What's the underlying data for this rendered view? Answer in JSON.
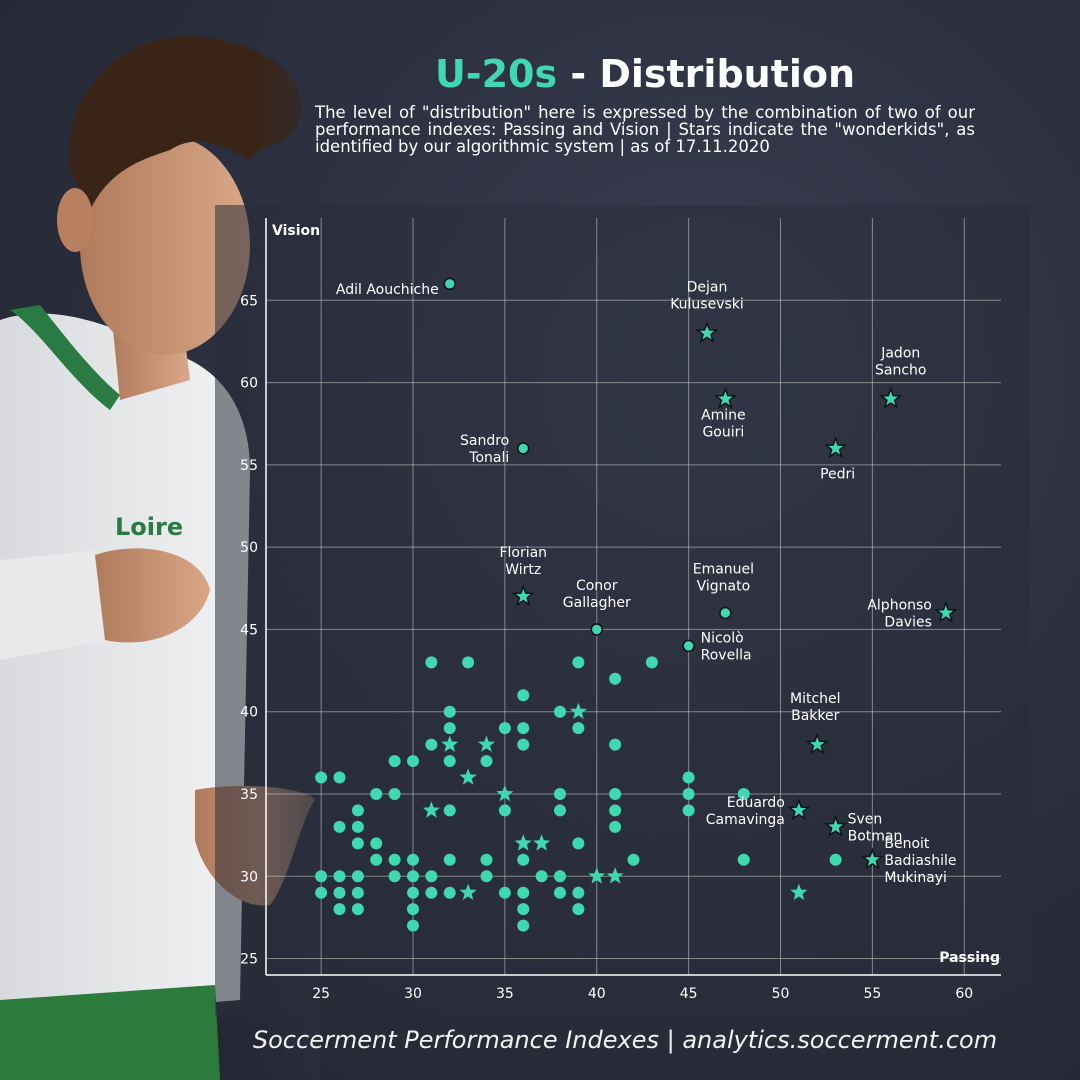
{
  "header": {
    "title_accent": "U-20s",
    "title_rest": " - Distribution",
    "subtitle": "The level of \"distribution\" here is expressed by the combination of two of our performance indexes: Passing and Vision | Stars indicate the \"wonderkids\", as identified by our algorithmic system | as of 17.11.2020"
  },
  "footer": {
    "text": "Soccerment Performance Indexes | analytics.soccerment.com"
  },
  "colors": {
    "accent": "#3fd8b0",
    "grid": "#cfcfcf",
    "text": "#ffffff",
    "panel": "#2a2d3a"
  },
  "chart_data": {
    "type": "scatter",
    "xlabel": "Passing",
    "ylabel": "Vision",
    "xlim": [
      22,
      62
    ],
    "ylim": [
      24,
      70
    ],
    "xticks": [
      25,
      30,
      35,
      40,
      45,
      50,
      55,
      60
    ],
    "yticks": [
      25,
      30,
      35,
      40,
      45,
      50,
      55,
      60,
      65
    ],
    "grid": true,
    "marker_legend": {
      "circle": "player",
      "star": "wonderkid"
    },
    "labeled_points": [
      {
        "name": "Adil Aouchiche",
        "x": 32,
        "y": 66,
        "marker": "circle"
      },
      {
        "name": "Dejan Kulusevski",
        "x": 46,
        "y": 63,
        "marker": "star"
      },
      {
        "name": "Jadon Sancho",
        "x": 56,
        "y": 59,
        "marker": "star"
      },
      {
        "name": "Amine Gouiri",
        "x": 47,
        "y": 59,
        "marker": "star"
      },
      {
        "name": "Sandro Tonali",
        "x": 36,
        "y": 56,
        "marker": "circle"
      },
      {
        "name": "Pedri",
        "x": 53,
        "y": 56,
        "marker": "star"
      },
      {
        "name": "Florian Wirtz",
        "x": 36,
        "y": 47,
        "marker": "star"
      },
      {
        "name": "Conor Gallagher",
        "x": 40,
        "y": 45,
        "marker": "circle"
      },
      {
        "name": "Emanuel Vignato",
        "x": 47,
        "y": 46,
        "marker": "circle"
      },
      {
        "name": "Alphonso Davies",
        "x": 59,
        "y": 46,
        "marker": "star"
      },
      {
        "name": "Nicolò Rovella",
        "x": 45,
        "y": 44,
        "marker": "circle"
      },
      {
        "name": "Mitchel Bakker",
        "x": 52,
        "y": 38,
        "marker": "star"
      },
      {
        "name": "Eduardo Camavinga",
        "x": 51,
        "y": 34,
        "marker": "star"
      },
      {
        "name": "Sven Botman",
        "x": 53,
        "y": 33,
        "marker": "star"
      },
      {
        "name": "Benoit Badiashile Mukinayi",
        "x": 55,
        "y": 31,
        "marker": "star"
      }
    ],
    "other_points": [
      {
        "x": 25,
        "y": 36,
        "marker": "circle"
      },
      {
        "x": 26,
        "y": 36,
        "marker": "circle"
      },
      {
        "x": 25,
        "y": 30,
        "marker": "circle"
      },
      {
        "x": 25,
        "y": 29,
        "marker": "circle"
      },
      {
        "x": 26,
        "y": 33,
        "marker": "circle"
      },
      {
        "x": 26,
        "y": 30,
        "marker": "circle"
      },
      {
        "x": 26,
        "y": 29,
        "marker": "circle"
      },
      {
        "x": 26,
        "y": 28,
        "marker": "circle"
      },
      {
        "x": 27,
        "y": 34,
        "marker": "circle"
      },
      {
        "x": 27,
        "y": 33,
        "marker": "circle"
      },
      {
        "x": 27,
        "y": 32,
        "marker": "circle"
      },
      {
        "x": 27,
        "y": 30,
        "marker": "circle"
      },
      {
        "x": 27,
        "y": 29,
        "marker": "circle"
      },
      {
        "x": 27,
        "y": 28,
        "marker": "circle"
      },
      {
        "x": 28,
        "y": 35,
        "marker": "circle"
      },
      {
        "x": 28,
        "y": 32,
        "marker": "circle"
      },
      {
        "x": 28,
        "y": 31,
        "marker": "circle"
      },
      {
        "x": 29,
        "y": 37,
        "marker": "circle"
      },
      {
        "x": 29,
        "y": 35,
        "marker": "circle"
      },
      {
        "x": 29,
        "y": 31,
        "marker": "circle"
      },
      {
        "x": 29,
        "y": 30,
        "marker": "circle"
      },
      {
        "x": 30,
        "y": 37,
        "marker": "circle"
      },
      {
        "x": 30,
        "y": 31,
        "marker": "circle"
      },
      {
        "x": 30,
        "y": 30,
        "marker": "circle"
      },
      {
        "x": 30,
        "y": 29,
        "marker": "circle"
      },
      {
        "x": 30,
        "y": 28,
        "marker": "circle"
      },
      {
        "x": 30,
        "y": 27,
        "marker": "circle"
      },
      {
        "x": 31,
        "y": 43,
        "marker": "circle"
      },
      {
        "x": 31,
        "y": 38,
        "marker": "circle"
      },
      {
        "x": 31,
        "y": 34,
        "marker": "star"
      },
      {
        "x": 31,
        "y": 30,
        "marker": "circle"
      },
      {
        "x": 31,
        "y": 29,
        "marker": "circle"
      },
      {
        "x": 32,
        "y": 40,
        "marker": "circle"
      },
      {
        "x": 32,
        "y": 39,
        "marker": "circle"
      },
      {
        "x": 32,
        "y": 38,
        "marker": "star"
      },
      {
        "x": 32,
        "y": 37,
        "marker": "circle"
      },
      {
        "x": 32,
        "y": 34,
        "marker": "circle"
      },
      {
        "x": 32,
        "y": 31,
        "marker": "circle"
      },
      {
        "x": 32,
        "y": 29,
        "marker": "circle"
      },
      {
        "x": 33,
        "y": 43,
        "marker": "circle"
      },
      {
        "x": 33,
        "y": 36,
        "marker": "star"
      },
      {
        "x": 33,
        "y": 29,
        "marker": "star"
      },
      {
        "x": 34,
        "y": 38,
        "marker": "star"
      },
      {
        "x": 34,
        "y": 37,
        "marker": "circle"
      },
      {
        "x": 34,
        "y": 31,
        "marker": "circle"
      },
      {
        "x": 34,
        "y": 30,
        "marker": "circle"
      },
      {
        "x": 35,
        "y": 39,
        "marker": "circle"
      },
      {
        "x": 35,
        "y": 35,
        "marker": "star"
      },
      {
        "x": 35,
        "y": 34,
        "marker": "circle"
      },
      {
        "x": 35,
        "y": 29,
        "marker": "circle"
      },
      {
        "x": 36,
        "y": 41,
        "marker": "circle"
      },
      {
        "x": 36,
        "y": 39,
        "marker": "circle"
      },
      {
        "x": 36,
        "y": 38,
        "marker": "circle"
      },
      {
        "x": 36,
        "y": 32,
        "marker": "star"
      },
      {
        "x": 36,
        "y": 31,
        "marker": "circle"
      },
      {
        "x": 36,
        "y": 29,
        "marker": "circle"
      },
      {
        "x": 36,
        "y": 28,
        "marker": "circle"
      },
      {
        "x": 36,
        "y": 27,
        "marker": "circle"
      },
      {
        "x": 37,
        "y": 32,
        "marker": "star"
      },
      {
        "x": 37,
        "y": 30,
        "marker": "circle"
      },
      {
        "x": 38,
        "y": 40,
        "marker": "circle"
      },
      {
        "x": 38,
        "y": 35,
        "marker": "circle"
      },
      {
        "x": 38,
        "y": 34,
        "marker": "circle"
      },
      {
        "x": 38,
        "y": 30,
        "marker": "circle"
      },
      {
        "x": 38,
        "y": 29,
        "marker": "circle"
      },
      {
        "x": 39,
        "y": 43,
        "marker": "circle"
      },
      {
        "x": 39,
        "y": 40,
        "marker": "star"
      },
      {
        "x": 39,
        "y": 39,
        "marker": "circle"
      },
      {
        "x": 39,
        "y": 32,
        "marker": "circle"
      },
      {
        "x": 39,
        "y": 29,
        "marker": "circle"
      },
      {
        "x": 39,
        "y": 28,
        "marker": "circle"
      },
      {
        "x": 40,
        "y": 30,
        "marker": "star"
      },
      {
        "x": 41,
        "y": 42,
        "marker": "circle"
      },
      {
        "x": 41,
        "y": 38,
        "marker": "circle"
      },
      {
        "x": 41,
        "y": 35,
        "marker": "circle"
      },
      {
        "x": 41,
        "y": 34,
        "marker": "circle"
      },
      {
        "x": 41,
        "y": 33,
        "marker": "circle"
      },
      {
        "x": 41,
        "y": 30,
        "marker": "star"
      },
      {
        "x": 42,
        "y": 31,
        "marker": "circle"
      },
      {
        "x": 43,
        "y": 43,
        "marker": "circle"
      },
      {
        "x": 45,
        "y": 36,
        "marker": "circle"
      },
      {
        "x": 45,
        "y": 35,
        "marker": "circle"
      },
      {
        "x": 45,
        "y": 34,
        "marker": "circle"
      },
      {
        "x": 48,
        "y": 35,
        "marker": "circle"
      },
      {
        "x": 48,
        "y": 31,
        "marker": "circle"
      },
      {
        "x": 51,
        "y": 29,
        "marker": "star"
      },
      {
        "x": 53,
        "y": 31,
        "marker": "circle"
      }
    ]
  }
}
